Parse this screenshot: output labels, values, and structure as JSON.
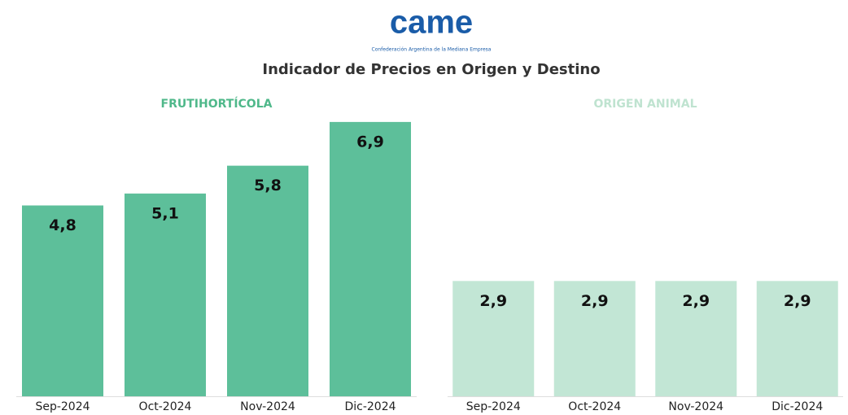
{
  "header": {
    "logo": "came",
    "logo_subtitle": "Confederación Argentina de la Mediana Empresa",
    "title": "Indicador de Precios en Origen y Destino"
  },
  "chart_data": [
    {
      "type": "bar",
      "title": "FRUTIHORTÍCOLA",
      "categories": [
        "Sep-2024",
        "Oct-2024",
        "Nov-2024",
        "Dic-2024"
      ],
      "values": [
        4.8,
        5.1,
        5.8,
        6.9
      ],
      "value_labels": [
        "4,8",
        "5,1",
        "5,8",
        "6,9"
      ],
      "color": "#5dbf9a",
      "ylim": [
        0,
        7
      ]
    },
    {
      "type": "bar",
      "title": "ORIGEN ANIMAL",
      "categories": [
        "Sep-2024",
        "Oct-2024",
        "Nov-2024",
        "Dic-2024"
      ],
      "values": [
        2.9,
        2.9,
        2.9,
        2.9
      ],
      "value_labels": [
        "2,9",
        "2,9",
        "2,9",
        "2,9"
      ],
      "color": "#c2e6d5",
      "ylim": [
        0,
        7
      ]
    }
  ]
}
